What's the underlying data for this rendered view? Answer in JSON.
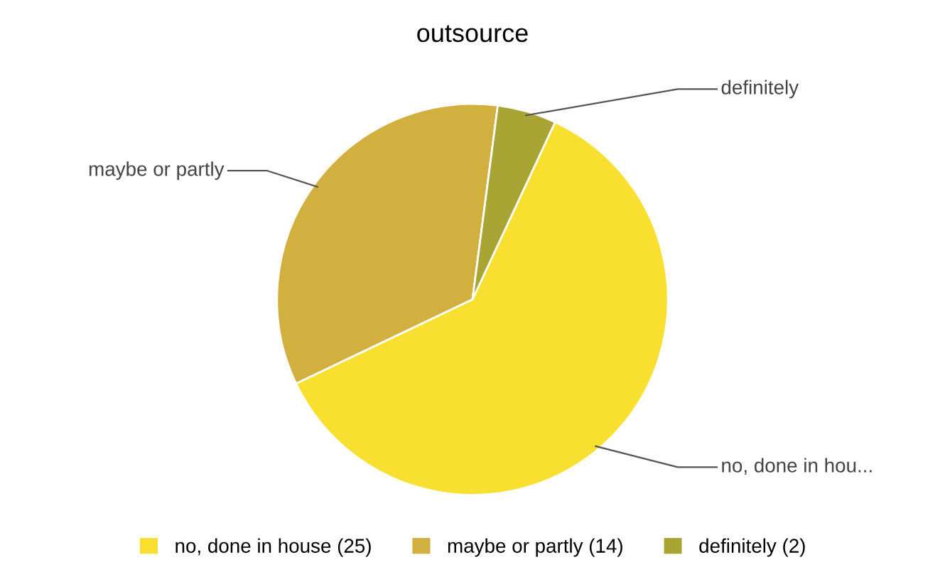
{
  "chart_data": {
    "type": "pie",
    "title": "outsource",
    "categories": [
      "no, done in house (25)",
      "maybe or partly (14)",
      "definitely (2)"
    ],
    "values": [
      25,
      14,
      2
    ],
    "colors": [
      "#f9df2f",
      "#d1b03f",
      "#a8a535"
    ],
    "annotations": [
      "no, done in hou...",
      "maybe or partly",
      "definitely"
    ],
    "legend": "bottom"
  }
}
